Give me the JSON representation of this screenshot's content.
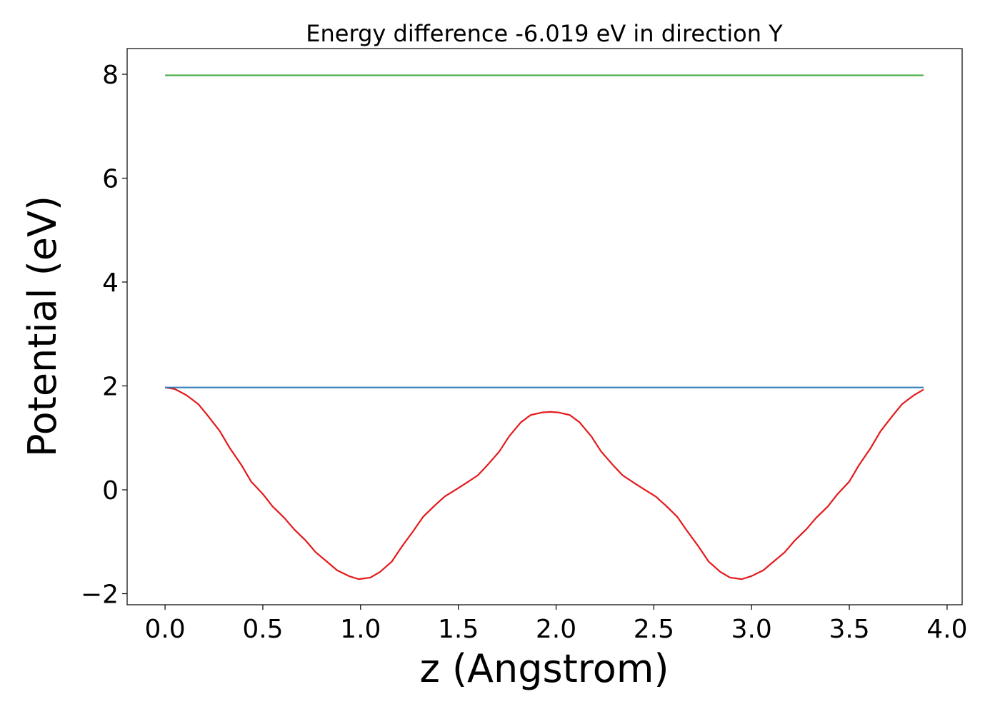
{
  "chart_data": {
    "type": "line",
    "title": "Energy difference -6.019 eV in direction Y",
    "xlabel": "z (Angstrom)",
    "ylabel": "Potential (eV)",
    "xlim": [
      -0.194,
      4.077
    ],
    "ylim": [
      -2.213,
      8.495
    ],
    "xticks": [
      {
        "value": 0,
        "label": "0.0"
      },
      0.5,
      {
        "value": 1,
        "label": "1.0"
      },
      1.5,
      {
        "value": 2,
        "label": "2.0"
      },
      2.5,
      {
        "value": 3,
        "label": "3.0"
      },
      3.5,
      {
        "value": 4,
        "label": "4.0"
      }
    ],
    "yticks": [
      {
        "value": -2,
        "label": "−2"
      },
      0,
      2,
      4,
      6,
      8
    ],
    "grid": false,
    "series": [
      {
        "color": "#e41a1c",
        "x": [
          0.0,
          0.05,
          0.11,
          0.17,
          0.22,
          0.28,
          0.33,
          0.39,
          0.44,
          0.5,
          0.55,
          0.61,
          0.66,
          0.72,
          0.77,
          0.83,
          0.88,
          0.94,
          0.99,
          1.05,
          1.1,
          1.16,
          1.21,
          1.27,
          1.32,
          1.38,
          1.43,
          1.49,
          1.54,
          1.6,
          1.65,
          1.71,
          1.76,
          1.82,
          1.87,
          1.93,
          1.97,
          2.01,
          2.07,
          2.12,
          2.18,
          2.23,
          2.29,
          2.34,
          2.4,
          2.45,
          2.51,
          2.56,
          2.62,
          2.67,
          2.73,
          2.78,
          2.84,
          2.89,
          2.95,
          3.0,
          3.06,
          3.11,
          3.17,
          3.22,
          3.28,
          3.33,
          3.39,
          3.44,
          3.5,
          3.55,
          3.61,
          3.66,
          3.72,
          3.77,
          3.83,
          3.88
        ],
        "values": [
          1.97,
          1.94,
          1.82,
          1.65,
          1.42,
          1.13,
          0.81,
          0.48,
          0.16,
          -0.08,
          -0.32,
          -0.54,
          -0.76,
          -0.98,
          -1.2,
          -1.39,
          -1.55,
          -1.66,
          -1.72,
          -1.69,
          -1.58,
          -1.38,
          -1.1,
          -0.79,
          -0.52,
          -0.3,
          -0.13,
          0.01,
          0.13,
          0.28,
          0.48,
          0.74,
          1.03,
          1.3,
          1.44,
          1.49,
          1.5,
          1.49,
          1.44,
          1.3,
          1.03,
          0.74,
          0.48,
          0.28,
          0.13,
          0.01,
          -0.13,
          -0.3,
          -0.52,
          -0.79,
          -1.1,
          -1.38,
          -1.58,
          -1.69,
          -1.72,
          -1.66,
          -1.55,
          -1.39,
          -1.2,
          -0.98,
          -0.76,
          -0.54,
          -0.32,
          -0.08,
          0.16,
          0.48,
          0.81,
          1.13,
          1.42,
          1.65,
          1.82,
          1.93
        ]
      },
      {
        "color": "#377eb8",
        "x": [
          0,
          3.88
        ],
        "values": [
          1.97,
          1.97
        ]
      },
      {
        "color": "#4daf4a",
        "x": [
          0,
          3.88
        ],
        "values": [
          7.98,
          7.98
        ]
      }
    ]
  }
}
